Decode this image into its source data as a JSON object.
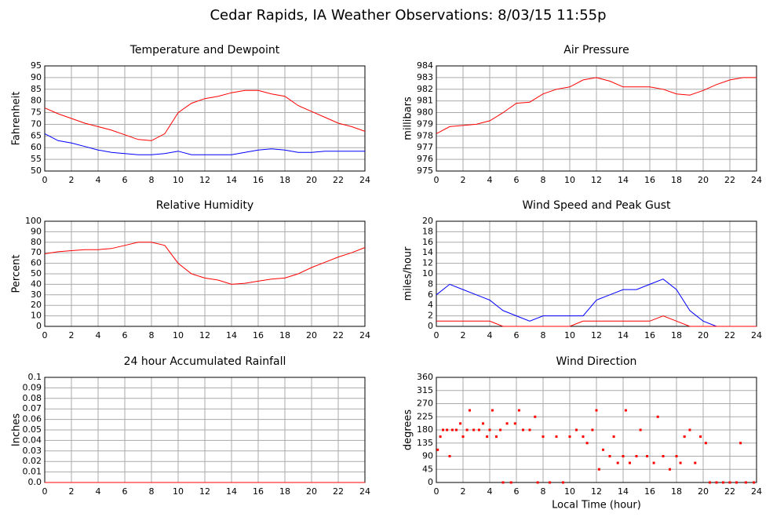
{
  "title": "Cedar Rapids, IA Weather Observations: 8/03/15 11:55p",
  "chart_data": [
    {
      "type": "line",
      "title": "Temperature and Dewpoint",
      "ylabel": "Fahrenheit",
      "grid": true,
      "x": [
        0,
        1,
        2,
        3,
        4,
        5,
        6,
        7,
        8,
        9,
        10,
        11,
        12,
        13,
        14,
        15,
        16,
        17,
        18,
        19,
        20,
        21,
        22,
        23,
        24
      ],
      "series": [
        {
          "color": "#ff0000",
          "values": [
            77,
            74.5,
            72.5,
            70.5,
            69,
            67.5,
            65.5,
            63.5,
            63,
            66,
            75,
            79,
            81,
            82,
            83.5,
            84.5,
            84.5,
            83,
            82,
            78,
            75.5,
            73,
            70.5,
            69,
            67
          ]
        },
        {
          "color": "#0000ff",
          "values": [
            66,
            63,
            62,
            60.5,
            59,
            58,
            57.5,
            57,
            57,
            57.5,
            58.5,
            57,
            57,
            57,
            57,
            58,
            59,
            59.5,
            59,
            58,
            58,
            58.5,
            58.5,
            58.5,
            58.5
          ]
        }
      ],
      "xlim": [
        0,
        24
      ],
      "xticks": [
        0,
        2,
        4,
        6,
        8,
        10,
        12,
        14,
        16,
        18,
        20,
        22,
        24
      ],
      "ylim": [
        50,
        95
      ],
      "yticks": [
        50,
        55,
        60,
        65,
        70,
        75,
        80,
        85,
        90,
        95
      ]
    },
    {
      "type": "line",
      "title": "Air Pressure",
      "ylabel": "millibars",
      "grid": true,
      "x": [
        0,
        1,
        2,
        3,
        4,
        5,
        6,
        7,
        8,
        9,
        10,
        11,
        12,
        13,
        14,
        15,
        16,
        17,
        18,
        19,
        20,
        21,
        22,
        23,
        24
      ],
      "series": [
        {
          "color": "#ff0000",
          "values": [
            978.2,
            978.8,
            978.9,
            979.0,
            979.3,
            980.0,
            980.8,
            980.9,
            981.6,
            982.0,
            982.2,
            982.8,
            983.0,
            982.7,
            982.2,
            982.2,
            982.2,
            982.0,
            981.6,
            981.5,
            981.9,
            982.4,
            982.8,
            983.0,
            983.0
          ]
        }
      ],
      "xlim": [
        0,
        24
      ],
      "xticks": [
        0,
        2,
        4,
        6,
        8,
        10,
        12,
        14,
        16,
        18,
        20,
        22,
        24
      ],
      "ylim": [
        975,
        984
      ],
      "yticks": [
        975,
        976,
        977,
        978,
        979,
        980,
        981,
        982,
        983,
        984
      ]
    },
    {
      "type": "line",
      "title": "Relative Humidity",
      "ylabel": "Percent",
      "grid": true,
      "x": [
        0,
        1,
        2,
        3,
        4,
        5,
        6,
        7,
        8,
        9,
        10,
        11,
        12,
        13,
        14,
        15,
        16,
        17,
        18,
        19,
        20,
        21,
        22,
        23,
        24
      ],
      "series": [
        {
          "color": "#ff0000",
          "values": [
            69,
            71,
            72,
            73,
            73,
            74,
            77,
            80,
            80,
            77,
            60,
            50,
            46,
            44,
            40,
            41,
            43,
            45,
            46,
            50,
            56,
            61,
            66,
            70,
            75
          ]
        }
      ],
      "xlim": [
        0,
        24
      ],
      "xticks": [
        0,
        2,
        4,
        6,
        8,
        10,
        12,
        14,
        16,
        18,
        20,
        22,
        24
      ],
      "ylim": [
        0,
        100
      ],
      "yticks": [
        0,
        10,
        20,
        30,
        40,
        50,
        60,
        70,
        80,
        90,
        100
      ]
    },
    {
      "type": "line",
      "title": "Wind Speed and Peak Gust",
      "ylabel": "miles/hour",
      "grid": true,
      "x": [
        0,
        1,
        2,
        3,
        4,
        5,
        6,
        7,
        8,
        9,
        10,
        11,
        12,
        13,
        14,
        15,
        16,
        17,
        18,
        19,
        20,
        21,
        22,
        23,
        24
      ],
      "series": [
        {
          "color": "#0000ff",
          "values": [
            6,
            8,
            7,
            6,
            5,
            3,
            2,
            1,
            2,
            2,
            2,
            2,
            5,
            6,
            7,
            7,
            8,
            9,
            7,
            3,
            1,
            0,
            0,
            0,
            0
          ]
        },
        {
          "color": "#ff0000",
          "values": [
            1,
            1,
            1,
            1,
            1,
            0,
            0,
            0,
            0,
            0,
            0,
            1,
            1,
            1,
            1,
            1,
            1,
            2,
            1,
            0,
            0,
            0,
            0,
            0,
            0
          ]
        }
      ],
      "xlim": [
        0,
        24
      ],
      "xticks": [
        0,
        2,
        4,
        6,
        8,
        10,
        12,
        14,
        16,
        18,
        20,
        22,
        24
      ],
      "ylim": [
        0,
        20
      ],
      "yticks": [
        0,
        2,
        4,
        6,
        8,
        10,
        12,
        14,
        16,
        18,
        20
      ]
    },
    {
      "type": "line",
      "title": "24 hour Accumulated Rainfall",
      "ylabel": "Inches",
      "grid": true,
      "x": [
        0,
        1,
        2,
        3,
        4,
        5,
        6,
        7,
        8,
        9,
        10,
        11,
        12,
        13,
        14,
        15,
        16,
        17,
        18,
        19,
        20,
        21,
        22,
        23,
        24
      ],
      "series": [
        {
          "color": "#ff0000",
          "values": [
            0,
            0,
            0,
            0,
            0,
            0,
            0,
            0,
            0,
            0,
            0,
            0,
            0,
            0,
            0,
            0,
            0,
            0,
            0,
            0,
            0,
            0,
            0,
            0,
            0
          ]
        }
      ],
      "xlim": [
        0,
        24
      ],
      "xticks": [
        0,
        2,
        4,
        6,
        8,
        10,
        12,
        14,
        16,
        18,
        20,
        22,
        24
      ],
      "ylim": [
        0,
        0.1
      ],
      "yticks": [
        {
          "value": 0,
          "label": "0.0"
        },
        0.01,
        0.02,
        0.03,
        0.04,
        0.05,
        0.06,
        0.07,
        0.08,
        0.09,
        0.1
      ]
    },
    {
      "type": "scatter",
      "title": "Wind Direction",
      "ylabel": "degrees",
      "xlabel": "Local Time (hour)",
      "grid": true,
      "x": [
        0.1,
        0.3,
        0.5,
        0.8,
        1.0,
        1.2,
        1.5,
        1.8,
        2.0,
        2.3,
        2.5,
        2.8,
        3.2,
        3.5,
        3.8,
        4.0,
        4.2,
        4.5,
        4.8,
        5.0,
        5.3,
        5.6,
        5.9,
        6.2,
        6.5,
        7.0,
        7.4,
        7.6,
        8.0,
        8.5,
        9.0,
        9.5,
        10.0,
        10.5,
        11.0,
        11.3,
        11.7,
        12.0,
        12.2,
        12.5,
        13.0,
        13.3,
        13.6,
        14.0,
        14.2,
        14.5,
        15.0,
        15.3,
        15.8,
        16.3,
        16.6,
        17.0,
        17.5,
        18.0,
        18.3,
        18.6,
        19.0,
        19.4,
        19.8,
        20.2,
        20.5,
        21.0,
        21.5,
        22.0,
        22.5,
        22.8,
        23.2,
        23.8
      ],
      "series": [
        {
          "color": "#ff0000",
          "values": [
            112,
            157,
            180,
            180,
            90,
            180,
            180,
            202,
            157,
            180,
            247,
            180,
            180,
            202,
            157,
            180,
            247,
            157,
            180,
            0,
            202,
            0,
            202,
            247,
            180,
            180,
            225,
            0,
            157,
            0,
            157,
            0,
            157,
            180,
            157,
            135,
            180,
            247,
            45,
            112,
            90,
            157,
            67,
            90,
            247,
            67,
            90,
            180,
            90,
            67,
            225,
            90,
            45,
            90,
            67,
            157,
            180,
            67,
            157,
            135,
            0,
            0,
            0,
            0,
            0,
            135,
            0,
            0
          ]
        }
      ],
      "xlim": [
        0,
        24
      ],
      "xticks": [
        0,
        2,
        4,
        6,
        8,
        10,
        12,
        14,
        16,
        18,
        20,
        22,
        24
      ],
      "ylim": [
        0,
        360
      ],
      "yticks": [
        0,
        45,
        90,
        135,
        180,
        225,
        270,
        315,
        360
      ]
    }
  ]
}
